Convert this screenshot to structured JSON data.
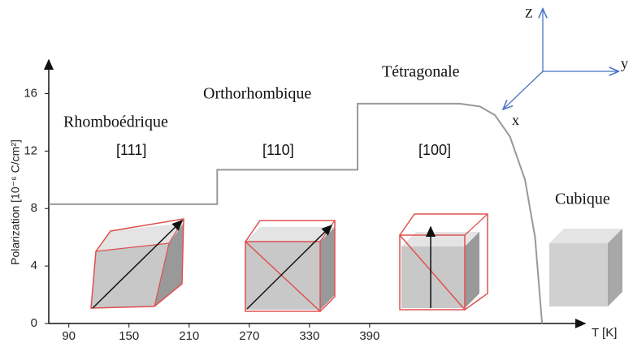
{
  "chart_data": {
    "type": "line",
    "y_label": "Polarization [10⁻⁶ C/cm²]",
    "x_label": "T [K]",
    "xlim": [
      70,
      600
    ],
    "xticks": [
      90,
      150,
      210,
      270,
      330,
      390
    ],
    "ylim": [
      0,
      18
    ],
    "yticks": [
      0,
      4,
      8,
      12,
      16
    ],
    "series": [
      {
        "color": "#999999",
        "x": [
          70,
          238,
          238,
          378,
          378,
          480,
          500,
          515,
          530,
          545,
          555,
          562
        ],
        "values": [
          8.3,
          8.3,
          10.7,
          10.7,
          15.3,
          15.3,
          15.1,
          14.5,
          13,
          10,
          6,
          0
        ]
      }
    ],
    "annotations": [
      "Rhomboédrique",
      "Orthorhombique",
      "Tétragonale",
      "Cubique",
      "[111]",
      "[110]",
      "[100]",
      "Z",
      "y",
      "x"
    ]
  }
}
